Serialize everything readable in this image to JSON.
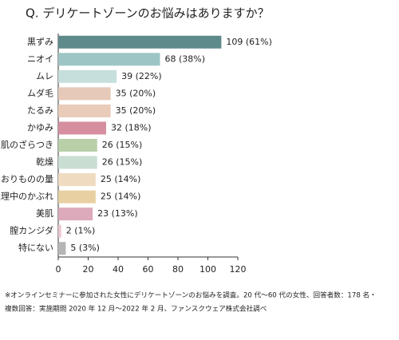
{
  "chart_data": {
    "type": "bar",
    "orientation": "horizontal",
    "title": "Q. デリケートゾーンのお悩みはありますか？",
    "categories": [
      "黒ずみ",
      "ニオイ",
      "ムレ",
      "ムダ毛",
      "たるみ",
      "かゆみ",
      "肌のざらつき",
      "乾燥",
      "おりものの量",
      "生理中のかぶれ",
      "美肌",
      "膣カンジダ",
      "特にない"
    ],
    "values": [
      109,
      68,
      39,
      35,
      35,
      32,
      26,
      26,
      25,
      25,
      23,
      2,
      5
    ],
    "value_labels": [
      "109 (61%)",
      "68 (38%)",
      "39 (22%)",
      "35 (20%)",
      "35 (20%)",
      "32 (18%)",
      "26 (15%)",
      "26 (15%)",
      "25 (14%)",
      "25 (14%)",
      "23 (13%)",
      "2 (1%)",
      "5 (3%)"
    ],
    "colors": [
      "#5f8a8b",
      "#9ec5c5",
      "#c6dfdc",
      "#e6c9b8",
      "#e8cbb9",
      "#d68fa0",
      "#b8cfa8",
      "#c9ddd3",
      "#efdcc0",
      "#e8d0a2",
      "#dcaabb",
      "#ecc6d0",
      "#b5b5b5"
    ],
    "xlim": [
      0,
      120
    ],
    "xticks": [
      0,
      20,
      40,
      60,
      80,
      100,
      120
    ],
    "grid": false,
    "notes": [
      "※オンラインセミナーに参加された女性にデリケートゾーンのお悩みを調査。20 代～60 代の女性、回答者数：178 名・",
      "複数回答：実施期間 2020 年 12 月～2022 年 2 月、ファンスクウェア株式会社調べ"
    ]
  }
}
